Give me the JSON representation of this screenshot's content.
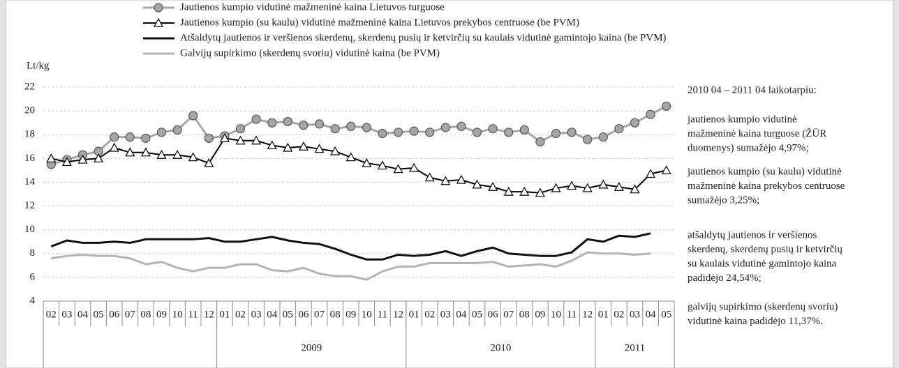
{
  "chart_data": {
    "type": "line",
    "y_label": "Lt/kg",
    "categories": [
      "02",
      "03",
      "04",
      "05",
      "06",
      "07",
      "08",
      "09",
      "10",
      "11",
      "12",
      "01",
      "02",
      "03",
      "04",
      "05",
      "06",
      "07",
      "08",
      "09",
      "10",
      "11",
      "12",
      "01",
      "02",
      "03",
      "04",
      "05",
      "06",
      "07",
      "08",
      "09",
      "10",
      "11",
      "12",
      "01",
      "02",
      "03",
      "04",
      "05"
    ],
    "years": [
      null,
      "2009",
      "2010",
      "2011"
    ],
    "series": [
      {
        "name": "Jautienos kumpio vidutinė mažmeninė kaina Lietuvos turguose",
        "color": "#a6a6a6",
        "marker": "circle",
        "width": 3,
        "values": [
          15.5,
          15.9,
          16.3,
          16.6,
          17.8,
          17.8,
          17.7,
          18.2,
          18.4,
          19.6,
          17.7,
          17.9,
          18.5,
          19.3,
          19.0,
          19.1,
          18.8,
          18.9,
          18.5,
          18.7,
          18.6,
          18.1,
          18.2,
          18.3,
          18.2,
          18.6,
          18.7,
          18.2,
          18.5,
          18.2,
          18.4,
          17.4,
          18.1,
          18.2,
          17.6,
          17.8,
          18.5,
          19.0,
          19.7,
          20.4
        ]
      },
      {
        "name": "Jautienos kumpio (su kaulu) vidutinė mažmeninė kaina Lietuvos prekybos centruose (be PVM)",
        "color": "#000000",
        "marker": "triangle",
        "width": 2,
        "values": [
          16.0,
          15.7,
          15.9,
          16.0,
          16.9,
          16.5,
          16.5,
          16.3,
          16.3,
          16.1,
          15.6,
          17.7,
          17.5,
          17.5,
          17.1,
          16.9,
          17.0,
          16.8,
          16.6,
          16.1,
          15.6,
          15.4,
          15.1,
          15.2,
          14.4,
          14.1,
          14.2,
          13.8,
          13.6,
          13.2,
          13.2,
          13.1,
          13.5,
          13.7,
          13.5,
          13.8,
          13.6,
          13.4,
          14.7,
          15.0
        ]
      },
      {
        "name": "Atšaldytų jautienos ir veršienos skerdenų, skerdenų pusių ir ketvirčių su kaulais vidutinė gamintojo kaina (be PVM)",
        "color": "#111111",
        "marker": null,
        "width": 3,
        "values": [
          8.6,
          9.1,
          8.9,
          8.9,
          9.0,
          8.9,
          9.2,
          9.2,
          9.2,
          9.2,
          9.3,
          9.0,
          9.0,
          9.2,
          9.4,
          9.1,
          8.9,
          8.8,
          8.4,
          7.9,
          7.5,
          7.5,
          7.9,
          7.8,
          7.9,
          8.2,
          7.8,
          8.2,
          8.5,
          8.0,
          7.9,
          7.8,
          7.8,
          8.1,
          9.2,
          9.0,
          9.5,
          9.4,
          9.7,
          null
        ]
      },
      {
        "name": "Galvijų supirkimo (skerdenų svoriu) vidutinė kaina (be PVM)",
        "color": "#b3b3b3",
        "marker": null,
        "width": 3,
        "values": [
          7.6,
          7.8,
          7.9,
          7.8,
          7.8,
          7.6,
          7.1,
          7.3,
          6.8,
          6.5,
          6.8,
          6.8,
          7.1,
          7.1,
          6.6,
          6.5,
          6.8,
          6.3,
          6.1,
          6.1,
          5.8,
          6.5,
          6.9,
          6.9,
          7.2,
          7.2,
          7.2,
          7.2,
          7.3,
          6.9,
          7.0,
          7.1,
          6.9,
          7.4,
          8.1,
          8.0,
          8.0,
          7.9,
          8.0,
          null
        ]
      }
    ],
    "ylim": [
      4,
      22
    ],
    "yticks": [
      4,
      6,
      8,
      10,
      12,
      14,
      16,
      18,
      20,
      22
    ],
    "grid": true,
    "annotations": [
      [
        "2010 04 – 2011 04 laikotarpiu:"
      ],
      [
        "jautienos kumpio vidutinė",
        "mažmeninė kaina turguose (ŽŪR",
        "duomenys) sumažėjo 4,97%;"
      ],
      [
        "jautienos kumpio (su kaulu) vidutinė",
        "mažmeninė kaina prekybos centruose",
        "sumažėjo 3,25%;"
      ],
      [
        "atšaldytų jautienos ir veršienos",
        "skerdenų, skerdenų pusių ir ketvirčių",
        "su kaulais vidutinė gamintojo kaina",
        "padidėjo 24,54%;"
      ],
      [
        "galvijų supirkimo (skerdenų svoriu)",
        "vidutinė kaina padidėjo 11,37%."
      ]
    ]
  }
}
